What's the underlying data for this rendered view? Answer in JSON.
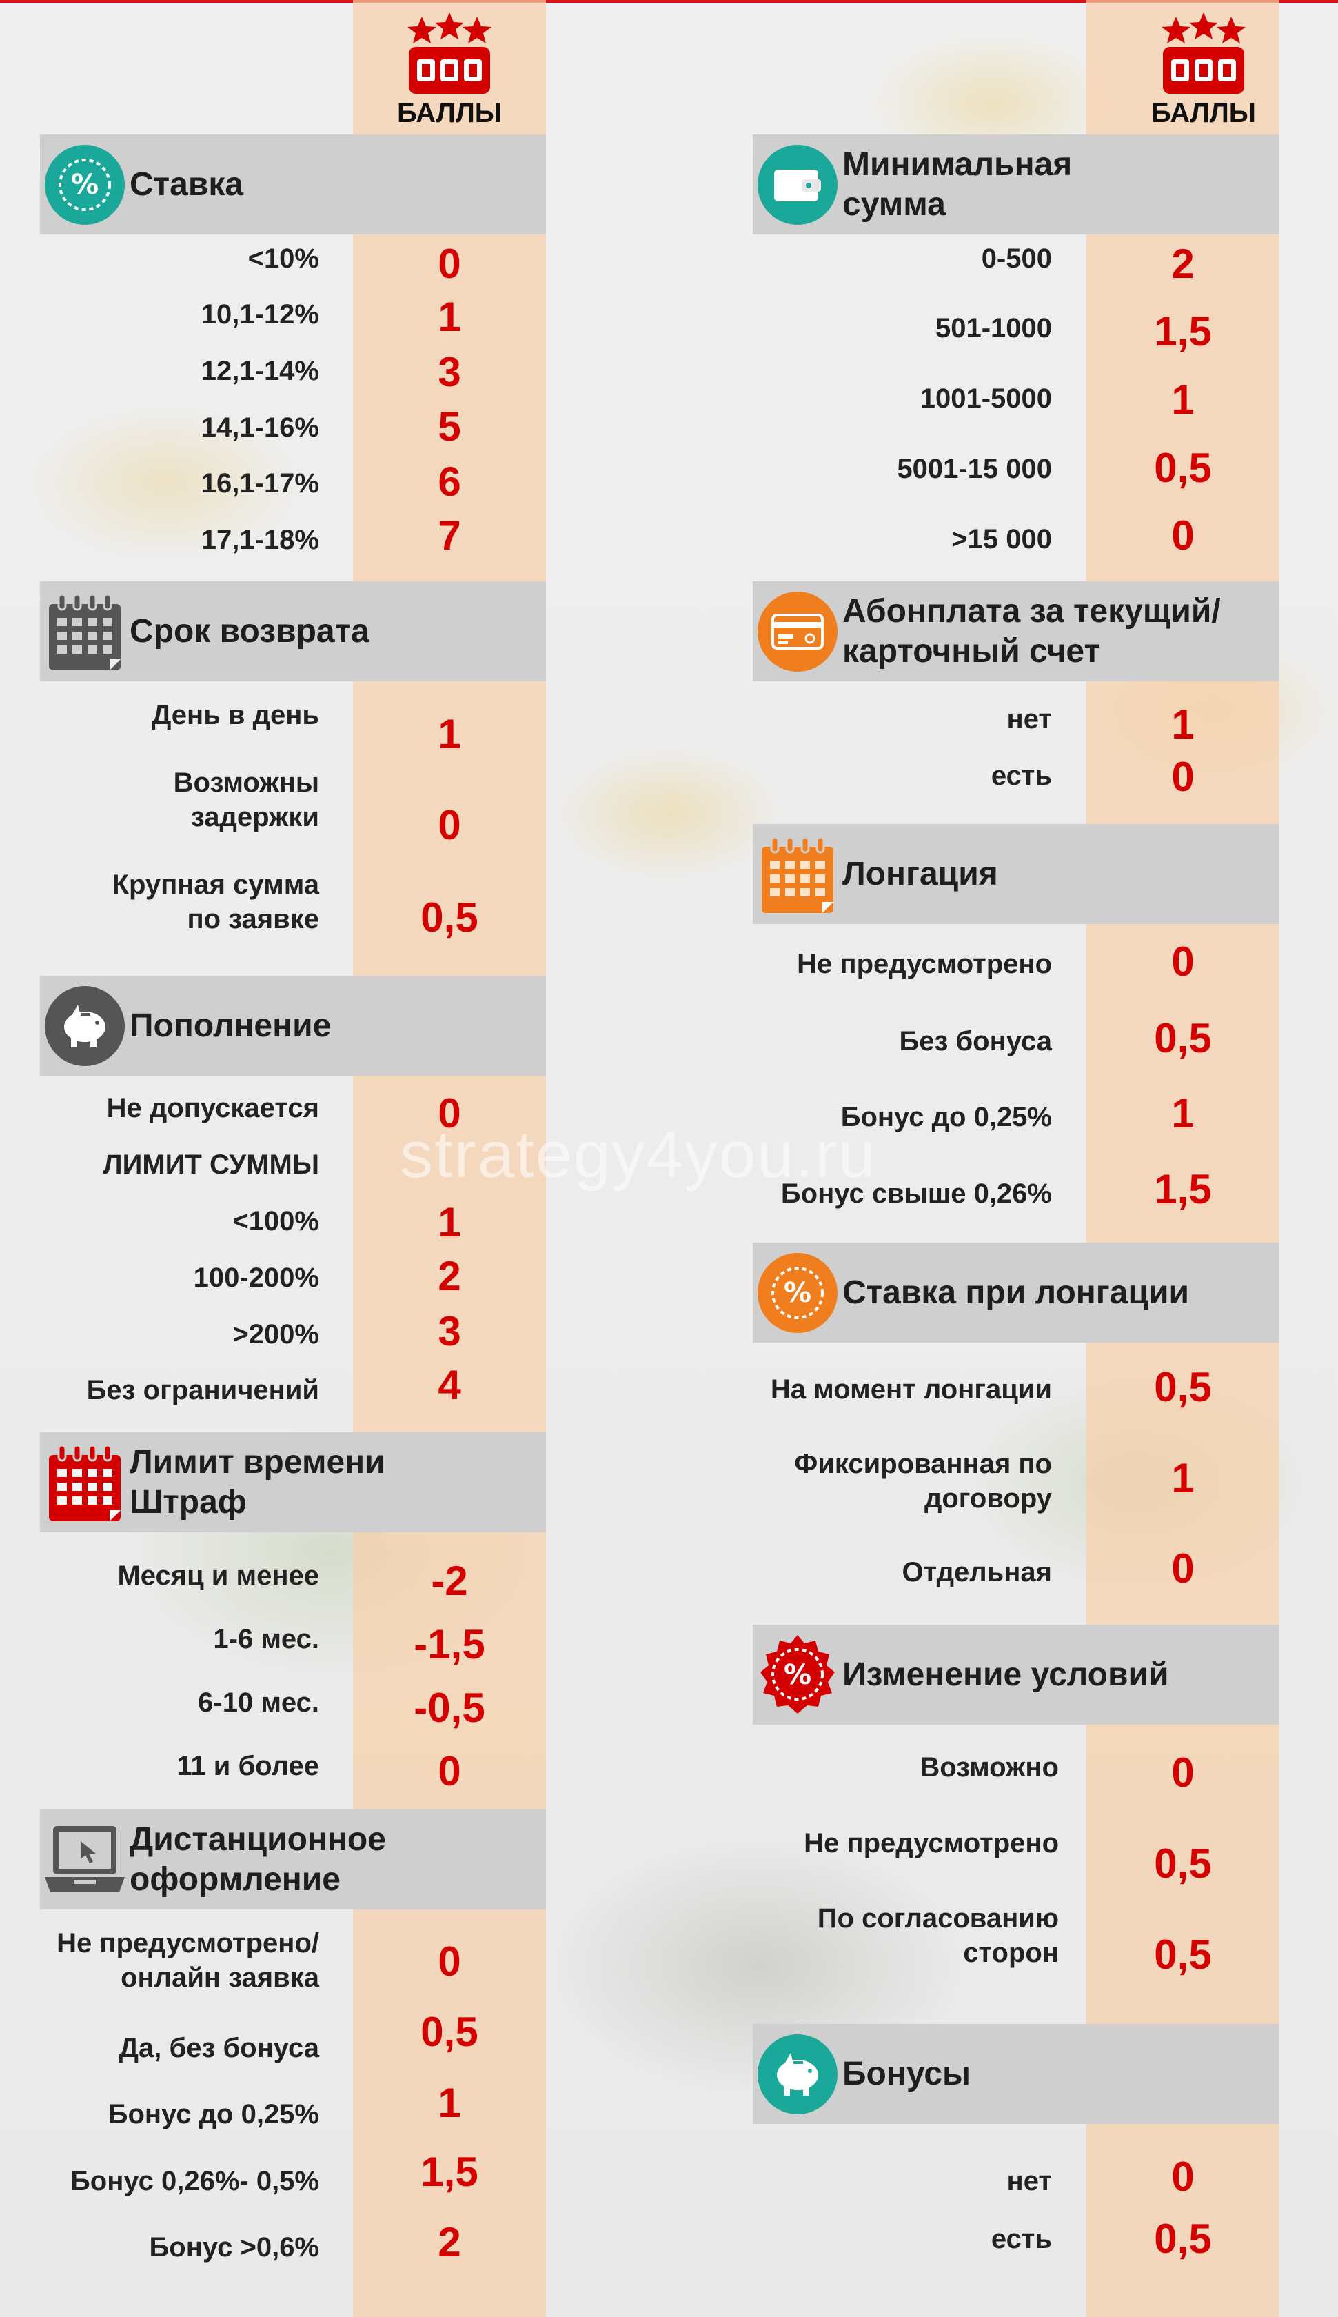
{
  "header": {
    "points_label": "БАЛЛЫ"
  },
  "watermark": "strategy4you.ru",
  "colors": {
    "accent": "#d40000",
    "stripe": "#f6d0aa",
    "header_bg": "#cfcfcf",
    "teal": "#1aa89b",
    "orange": "#f07d1e",
    "gray_icon": "#555555"
  },
  "left": {
    "stavka": {
      "title": "Ставка",
      "icon": "percent-icon",
      "rows": [
        {
          "label": "<10%",
          "value": "0"
        },
        {
          "label": "10,1-12%",
          "value": "1"
        },
        {
          "label": "12,1-14%",
          "value": "3"
        },
        {
          "label": "14,1-16%",
          "value": "5"
        },
        {
          "label": "16,1-17%",
          "value": "6"
        },
        {
          "label": "17,1-18%",
          "value": "7"
        }
      ]
    },
    "srok": {
      "title": "Срок возврата",
      "icon": "calendar-icon",
      "rows": [
        {
          "label": "День в день",
          "value": "1"
        },
        {
          "label": "Возможны задержки",
          "value": "0"
        },
        {
          "label": "Крупная сумма по заявке",
          "value": "0,5"
        }
      ]
    },
    "popolnenie": {
      "title": "Пополнение",
      "icon": "piggy-bank-icon",
      "rows": [
        {
          "label": "Не допускается",
          "value": "0"
        },
        {
          "label": "ЛИМИТ СУММЫ",
          "value": ""
        },
        {
          "label": "<100%",
          "value": "1"
        },
        {
          "label": "100-200%",
          "value": "2"
        },
        {
          "label": ">200%",
          "value": "3"
        },
        {
          "label": "Без ограничений",
          "value": "4"
        }
      ]
    },
    "limit": {
      "title": "Лимит времени Штраф",
      "icon": "calendar-icon",
      "rows": [
        {
          "label": "Месяц и менее",
          "value": "-2"
        },
        {
          "label": "1-6 мес.",
          "value": "-1,5"
        },
        {
          "label": "6-10 мес.",
          "value": "-0,5"
        },
        {
          "label": "11 и более",
          "value": "0"
        }
      ]
    },
    "distance": {
      "title": "Дистанционное оформление",
      "icon": "laptop-icon",
      "rows": [
        {
          "label": "Не предусмотрено/ онлайн заявка",
          "value": "0"
        },
        {
          "label": "Да, без бонуса",
          "value": "0,5"
        },
        {
          "label": "Бонус до 0,25%",
          "value": "1"
        },
        {
          "label": "Бонус 0,26%- 0,5%",
          "value": "1,5"
        },
        {
          "label": "Бонус >0,6%",
          "value": "2"
        }
      ]
    }
  },
  "right": {
    "min_sum": {
      "title": "Минимальная сумма",
      "icon": "wallet-icon",
      "rows": [
        {
          "label": "0-500",
          "value": "2"
        },
        {
          "label": "501-1000",
          "value": "1,5"
        },
        {
          "label": "1001-5000",
          "value": "1"
        },
        {
          "label": "5001-15 000",
          "value": "0,5"
        },
        {
          "label": ">15 000",
          "value": "0"
        }
      ]
    },
    "abonplata": {
      "title": "Абонплата за текущий/ карточный счет",
      "icon": "card-icon",
      "rows": [
        {
          "label": "нет",
          "value": "1"
        },
        {
          "label": "есть",
          "value": "0"
        }
      ]
    },
    "longacia": {
      "title": "Лонгация",
      "icon": "calendar-icon",
      "rows": [
        {
          "label": "Не предусмотрено",
          "value": "0"
        },
        {
          "label": "Без бонуса",
          "value": "0,5"
        },
        {
          "label": "Бонус до 0,25%",
          "value": "1"
        },
        {
          "label": "Бонус свыше 0,26%",
          "value": "1,5"
        }
      ]
    },
    "stavka_long": {
      "title": "Ставка при лонгации",
      "icon": "percent-icon",
      "rows": [
        {
          "label": "На момент лонгации",
          "value": "0,5"
        },
        {
          "label": "Фиксированная по договору",
          "value": "1"
        },
        {
          "label": "Отдельная",
          "value": "0"
        }
      ]
    },
    "izmenenie": {
      "title": "Изменение условий",
      "icon": "percent-badge-icon",
      "rows": [
        {
          "label": "Возможно",
          "value": "0"
        },
        {
          "label": "Не предусмотрено",
          "value": "0,5"
        },
        {
          "label": "По согласованию сторон",
          "value": "0,5"
        }
      ]
    },
    "bonusy": {
      "title": "Бонусы",
      "icon": "piggy-bank-icon",
      "rows": [
        {
          "label": "нет",
          "value": "0"
        },
        {
          "label": "есть",
          "value": "0,5"
        }
      ]
    }
  }
}
